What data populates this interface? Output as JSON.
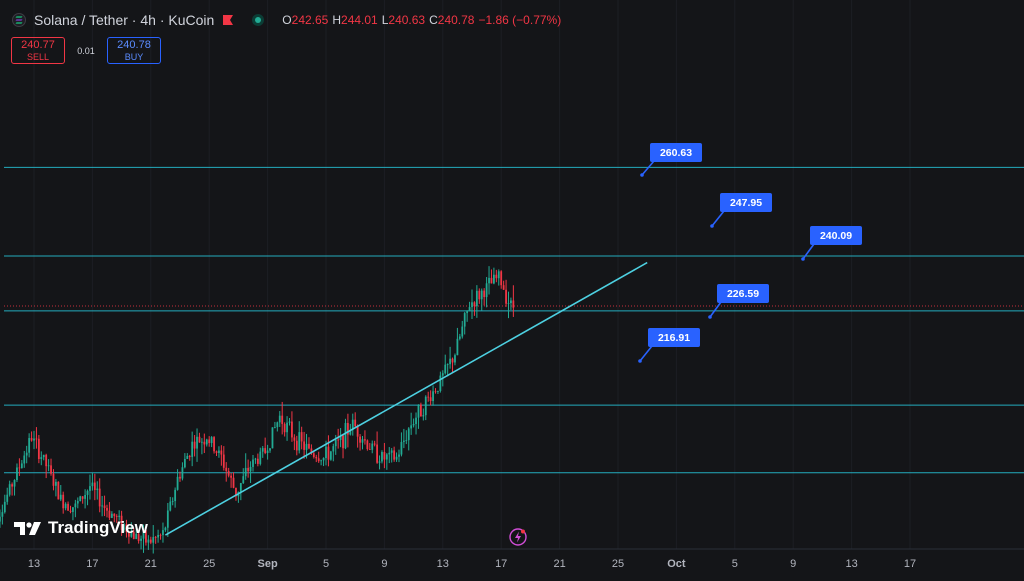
{
  "header": {
    "title": "Solana / Tether · 4h · KuCoin",
    "ohlc": [
      {
        "k": "O",
        "v": "242.65"
      },
      {
        "k": "H",
        "v": "244.01"
      },
      {
        "k": "L",
        "v": "240.63"
      },
      {
        "k": "C",
        "v": "240.78"
      },
      {
        "k": "",
        "v": "−1.86 (−0.77%)"
      }
    ]
  },
  "trade": {
    "sell_price": "240.77",
    "sell_label": "SELL",
    "spread": "0.01",
    "buy_price": "240.78",
    "buy_label": "BUY"
  },
  "logo_text": "TradingView",
  "colors": {
    "background": "#141518",
    "up": "#22ab94",
    "down": "#f23645",
    "level_line": "#26c6da",
    "trend_line": "#4dd0e1",
    "label_bg": "#2962ff"
  },
  "chart_data": {
    "type": "candlestick",
    "ylim": [
      206,
      276
    ],
    "x_ticks": [
      "13",
      "17",
      "21",
      "25",
      "Sep",
      "5",
      "9",
      "13",
      "17",
      "21",
      "25",
      "Oct",
      "5",
      "9",
      "13",
      "17"
    ],
    "last_price": 240.78,
    "horizontal_levels": [
      {
        "value": 260.63,
        "label": "260.63"
      },
      {
        "value": 247.95,
        "label": "247.95"
      },
      {
        "value": 240.09,
        "label": "240.09"
      },
      {
        "value": 226.59,
        "label": "226.59"
      },
      {
        "value": 216.91,
        "label": "216.91"
      }
    ],
    "trend_line": {
      "start": {
        "x": "Aug 22",
        "y": 208
      },
      "end": {
        "x": "Sep 24",
        "y": 247
      }
    },
    "price_path": [
      {
        "x": "Aug 10",
        "y": 209
      },
      {
        "x": "Aug 11",
        "y": 212
      },
      {
        "x": "Aug 12",
        "y": 217
      },
      {
        "x": "Aug 13",
        "y": 222
      },
      {
        "x": "Aug 14",
        "y": 218
      },
      {
        "x": "Aug 15",
        "y": 213
      },
      {
        "x": "Aug 16",
        "y": 212
      },
      {
        "x": "Aug 17",
        "y": 215
      },
      {
        "x": "Aug 18",
        "y": 212
      },
      {
        "x": "Aug 19",
        "y": 210
      },
      {
        "x": "Aug 20",
        "y": 208
      },
      {
        "x": "Aug 21",
        "y": 207
      },
      {
        "x": "Aug 22",
        "y": 208
      },
      {
        "x": "Aug 23",
        "y": 216
      },
      {
        "x": "Aug 24",
        "y": 221
      },
      {
        "x": "Aug 25",
        "y": 222
      },
      {
        "x": "Aug 26",
        "y": 219
      },
      {
        "x": "Aug 27",
        "y": 214
      },
      {
        "x": "Aug 28",
        "y": 218
      },
      {
        "x": "Aug 29",
        "y": 220
      },
      {
        "x": "Aug 30",
        "y": 225
      },
      {
        "x": "Aug 31",
        "y": 222
      },
      {
        "x": "Sep 1",
        "y": 220
      },
      {
        "x": "Sep 2",
        "y": 219
      },
      {
        "x": "Sep 3",
        "y": 221
      },
      {
        "x": "Sep 4",
        "y": 224
      },
      {
        "x": "Sep 5",
        "y": 221
      },
      {
        "x": "Sep 6",
        "y": 219
      },
      {
        "x": "Sep 7",
        "y": 219
      },
      {
        "x": "Sep 8",
        "y": 224
      },
      {
        "x": "Sep 9",
        "y": 227
      },
      {
        "x": "Sep 10",
        "y": 230
      },
      {
        "x": "Sep 11",
        "y": 234
      },
      {
        "x": "Sep 12",
        "y": 241
      },
      {
        "x": "Sep 13",
        "y": 243
      },
      {
        "x": "Sep 14",
        "y": 245
      },
      {
        "x": "Sep 14 20:00",
        "y": 240.78
      }
    ]
  }
}
